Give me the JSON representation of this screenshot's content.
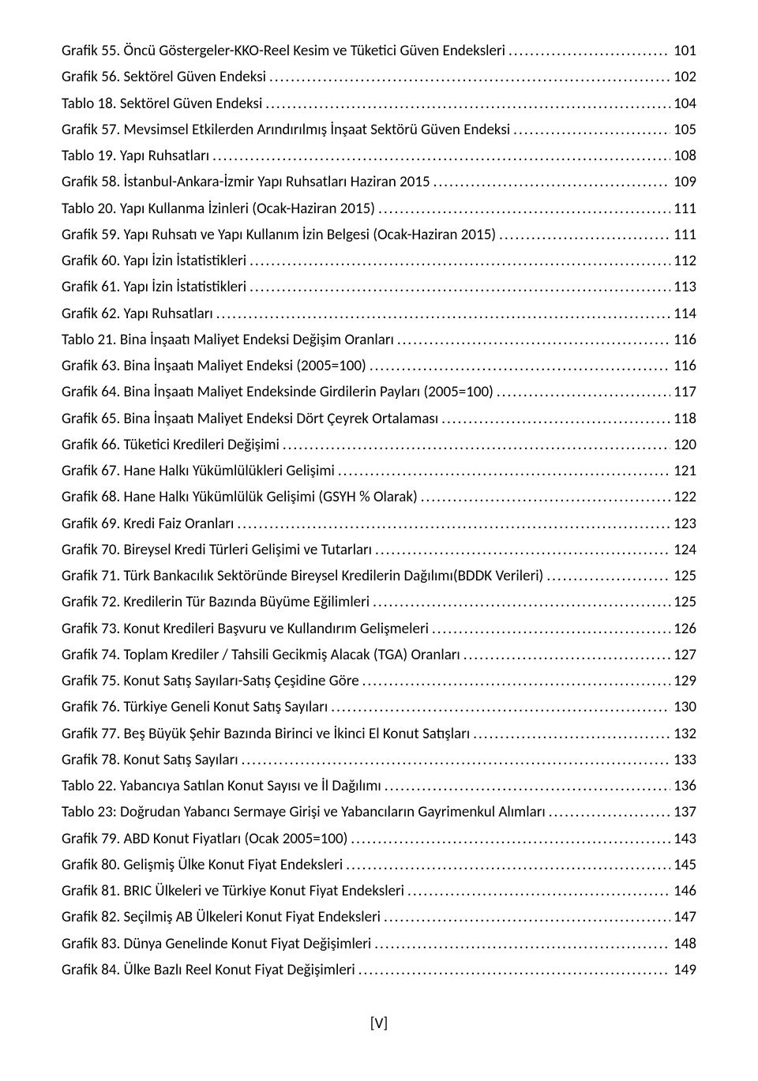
{
  "entries": [
    {
      "label": "Grafik 55. Öncü Göstergeler-KKO-Reel Kesim ve Tüketici Güven Endeksleri",
      "page": "101"
    },
    {
      "label": "Grafik 56. Sektörel Güven Endeksi",
      "page": "102"
    },
    {
      "label": "Tablo 18. Sektörel Güven Endeksi",
      "page": "104"
    },
    {
      "label": "Grafik 57. Mevsimsel Etkilerden Arındırılmış İnşaat Sektörü Güven Endeksi",
      "page": "105"
    },
    {
      "label": "Tablo 19. Yapı Ruhsatları",
      "page": "108"
    },
    {
      "label": "Grafik 58. İstanbul-Ankara-İzmir Yapı Ruhsatları Haziran 2015",
      "page": "109"
    },
    {
      "label": "Tablo 20. Yapı Kullanma İzinleri (Ocak-Haziran 2015)",
      "page": "111"
    },
    {
      "label": "Grafik 59. Yapı Ruhsatı ve Yapı Kullanım İzin Belgesi (Ocak-Haziran 2015)",
      "page": "111"
    },
    {
      "label": "Grafik 60. Yapı İzin İstatistikleri",
      "page": "112"
    },
    {
      "label": "Grafik 61. Yapı İzin İstatistikleri",
      "page": "113"
    },
    {
      "label": "Grafik 62. Yapı Ruhsatları",
      "page": "114"
    },
    {
      "label": "Tablo 21. Bina İnşaatı Maliyet Endeksi Değişim Oranları",
      "page": "116"
    },
    {
      "label": "Grafik 63. Bina İnşaatı Maliyet Endeksi (2005=100)",
      "page": "116"
    },
    {
      "label": "Grafik 64. Bina İnşaatı Maliyet Endeksinde Girdilerin Payları (2005=100)",
      "page": "117"
    },
    {
      "label": "Grafik 65. Bina İnşaatı Maliyet Endeksi Dört Çeyrek Ortalaması",
      "page": "118"
    },
    {
      "label": "Grafik 66. Tüketici Kredileri Değişimi",
      "page": "120"
    },
    {
      "label": "Grafik 67. Hane Halkı Yükümlülükleri Gelişimi",
      "page": "121"
    },
    {
      "label": "Grafik 68. Hane Halkı Yükümlülük Gelişimi (GSYH % Olarak)",
      "page": "122"
    },
    {
      "label": "Grafik 69.  Kredi Faiz Oranları",
      "page": "123"
    },
    {
      "label": "Grafik 70. Bireysel Kredi Türleri Gelişimi ve Tutarları",
      "page": "124"
    },
    {
      "label": "Grafik 71. Türk Bankacılık Sektöründe Bireysel Kredilerin Dağılımı(BDDK Verileri)",
      "page": "125"
    },
    {
      "label": "Grafik 72. Kredilerin Tür Bazında Büyüme Eğilimleri",
      "page": "125"
    },
    {
      "label": "Grafik 73. Konut Kredileri Başvuru ve Kullandırım Gelişmeleri",
      "page": "126"
    },
    {
      "label": "Grafik 74. Toplam Krediler / Tahsili Gecikmiş Alacak (TGA) Oranları",
      "page": "127"
    },
    {
      "label": "Grafik 75. Konut Satış Sayıları-Satış Çeşidine Göre",
      "page": "129"
    },
    {
      "label": "Grafik 76. Türkiye Geneli Konut Satış Sayıları",
      "page": "130"
    },
    {
      "label": "Grafik 77. Beş Büyük Şehir Bazında Birinci ve İkinci El Konut Satışları",
      "page": "132"
    },
    {
      "label": "Grafik 78. Konut Satış Sayıları",
      "page": "133"
    },
    {
      "label": "Tablo 22. Yabancıya Satılan Konut Sayısı ve İl Dağılımı",
      "page": "136"
    },
    {
      "label": "Tablo 23: Doğrudan Yabancı Sermaye Girişi ve Yabancıların Gayrimenkul Alımları",
      "page": "137"
    },
    {
      "label": "Grafik 79.  ABD Konut Fiyatları (Ocak 2005=100)",
      "page": "143"
    },
    {
      "label": "Grafik 80. Gelişmiş Ülke Konut Fiyat Endeksleri",
      "page": "145"
    },
    {
      "label": "Grafik 81. BRIC Ülkeleri ve Türkiye Konut Fiyat Endeksleri",
      "page": "146"
    },
    {
      "label": "Grafik 82.  Seçilmiş AB Ülkeleri Konut Fiyat Endeksleri",
      "page": "147"
    },
    {
      "label": "Grafik 83. Dünya Genelinde Konut Fiyat Değişimleri",
      "page": "148"
    },
    {
      "label": "Grafik 84. Ülke Bazlı Reel Konut Fiyat Değişimleri",
      "page": "149"
    }
  ],
  "footer": "[V]",
  "colors": {
    "text": "#000000",
    "background": "#ffffff"
  },
  "fontsize": 19,
  "font_family": "Calibri"
}
